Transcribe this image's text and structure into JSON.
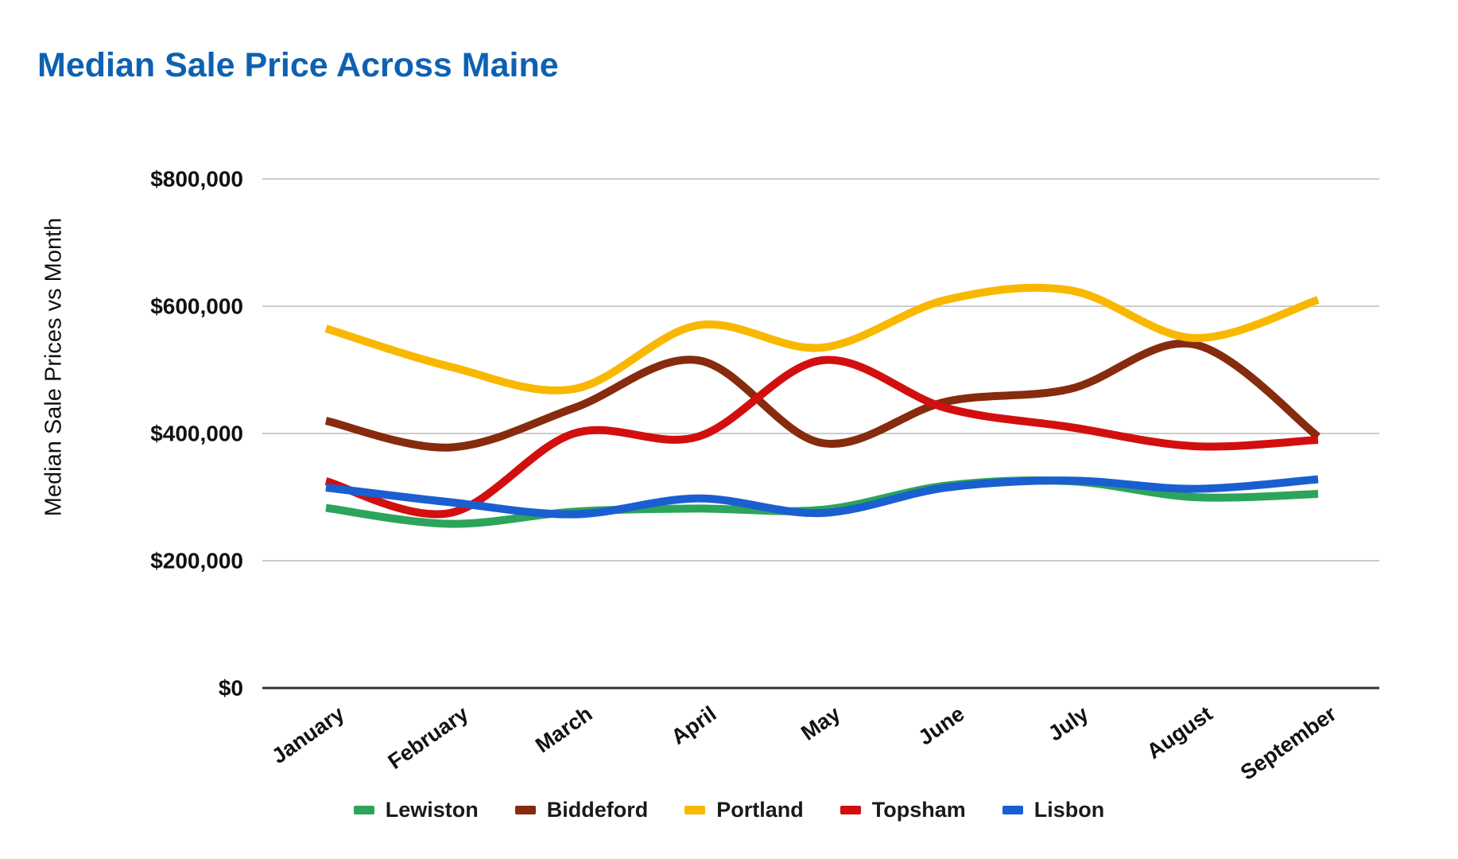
{
  "title": "Median Sale Price Across Maine",
  "y_axis_title": "Median Sale Prices vs Month",
  "chart_data": {
    "type": "line",
    "smooth": true,
    "grid": true,
    "legend_position": "bottom",
    "x": [
      "January",
      "February",
      "March",
      "April",
      "May",
      "June",
      "July",
      "August",
      "September"
    ],
    "xlabel": "",
    "ylabel": "Median Sale Prices vs Month",
    "ylim": [
      0,
      800000
    ],
    "y_ticks": [
      {
        "value": 0,
        "label": "$0"
      },
      {
        "value": 200000,
        "label": "$200,000"
      },
      {
        "value": 400000,
        "label": "$400,000"
      },
      {
        "value": 600000,
        "label": "$600,000"
      },
      {
        "value": 800000,
        "label": "$800,000"
      }
    ],
    "series": [
      {
        "name": "Lewiston",
        "color": "#2ca45a",
        "values": [
          283000,
          258000,
          277000,
          282000,
          280000,
          318000,
          325000,
          300000,
          305000
        ]
      },
      {
        "name": "Biddeford",
        "color": "#862b0e",
        "values": [
          420000,
          378000,
          440000,
          515000,
          385000,
          450000,
          470000,
          540000,
          395000
        ]
      },
      {
        "name": "Portland",
        "color": "#f9b800",
        "values": [
          565000,
          505000,
          470000,
          570000,
          535000,
          610000,
          625000,
          550000,
          610000
        ]
      },
      {
        "name": "Topsham",
        "color": "#d20f0f",
        "values": [
          325000,
          275000,
          400000,
          395000,
          515000,
          440000,
          410000,
          380000,
          390000
        ]
      },
      {
        "name": "Lisbon",
        "color": "#1a5fd0",
        "values": [
          315000,
          292000,
          273000,
          298000,
          275000,
          315000,
          326000,
          313000,
          328000
        ]
      }
    ],
    "colors": {
      "gridline": "#cccccc",
      "axis_line": "#333333",
      "tick_label": "#111111",
      "title": "#0e61b2"
    }
  }
}
